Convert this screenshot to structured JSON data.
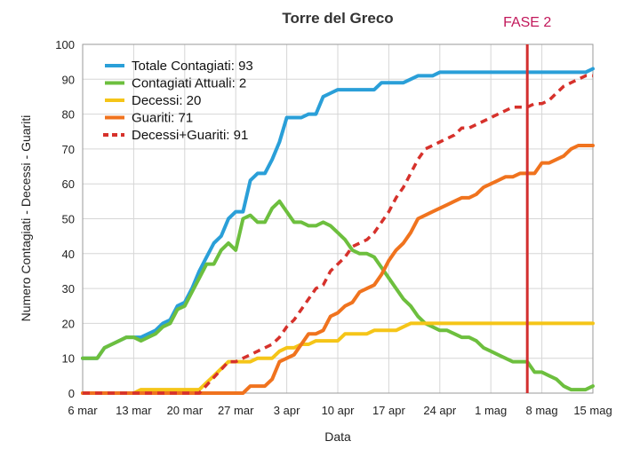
{
  "chart_data": {
    "type": "line",
    "title": "Torre del Greco",
    "xlabel": "Data",
    "ylabel": "Numero Contagiati - Decessi - Guariti",
    "x_ticks": [
      "6 mar",
      "13 mar",
      "20 mar",
      "27 mar",
      "3 apr",
      "10 apr",
      "17 apr",
      "24 apr",
      "1 mag",
      "8 mag",
      "15 mag"
    ],
    "xlim": [
      0,
      70
    ],
    "ylim": [
      0,
      100
    ],
    "y_ticks": [
      0,
      10,
      20,
      30,
      40,
      50,
      60,
      70,
      80,
      90,
      100
    ],
    "grid": true,
    "legend_position": "top-left",
    "annotation": {
      "text": "FASE 2",
      "x": 61,
      "color": "#c2185b",
      "line_color": "#d32f2f"
    },
    "series": [
      {
        "name": "Totale Contagiati: 93",
        "color": "#2a9fd8",
        "style": "solid",
        "points": [
          [
            0,
            10
          ],
          [
            2,
            10
          ],
          [
            3,
            13
          ],
          [
            5,
            15
          ],
          [
            6,
            16
          ],
          [
            8,
            16
          ],
          [
            9,
            17
          ],
          [
            10,
            18
          ],
          [
            11,
            20
          ],
          [
            12,
            21
          ],
          [
            13,
            25
          ],
          [
            14,
            26
          ],
          [
            15,
            30
          ],
          [
            16,
            35
          ],
          [
            17,
            39
          ],
          [
            18,
            43
          ],
          [
            19,
            45
          ],
          [
            20,
            50
          ],
          [
            21,
            52
          ],
          [
            22,
            52
          ],
          [
            23,
            61
          ],
          [
            24,
            63
          ],
          [
            25,
            63
          ],
          [
            26,
            67
          ],
          [
            27,
            72
          ],
          [
            28,
            79
          ],
          [
            29,
            79
          ],
          [
            30,
            79
          ],
          [
            31,
            80
          ],
          [
            32,
            80
          ],
          [
            33,
            85
          ],
          [
            34,
            86
          ],
          [
            35,
            87
          ],
          [
            36,
            87
          ],
          [
            37,
            87
          ],
          [
            38,
            87
          ],
          [
            39,
            87
          ],
          [
            40,
            87
          ],
          [
            41,
            89
          ],
          [
            42,
            89
          ],
          [
            43,
            89
          ],
          [
            44,
            89
          ],
          [
            45,
            90
          ],
          [
            46,
            91
          ],
          [
            47,
            91
          ],
          [
            48,
            91
          ],
          [
            49,
            92
          ],
          [
            50,
            92
          ],
          [
            51,
            92
          ],
          [
            52,
            92
          ],
          [
            53,
            92
          ],
          [
            54,
            92
          ],
          [
            55,
            92
          ],
          [
            56,
            92
          ],
          [
            57,
            92
          ],
          [
            58,
            92
          ],
          [
            59,
            92
          ],
          [
            60,
            92
          ],
          [
            61,
            92
          ],
          [
            62,
            92
          ],
          [
            63,
            92
          ],
          [
            64,
            92
          ],
          [
            65,
            92
          ],
          [
            66,
            92
          ],
          [
            67,
            92
          ],
          [
            68,
            92
          ],
          [
            69,
            92
          ],
          [
            70,
            93
          ]
        ]
      },
      {
        "name": "Contagiati Attuali: 2",
        "color": "#6dbf3e",
        "style": "solid",
        "points": [
          [
            0,
            10
          ],
          [
            2,
            10
          ],
          [
            3,
            13
          ],
          [
            5,
            15
          ],
          [
            6,
            16
          ],
          [
            7,
            16
          ],
          [
            8,
            15
          ],
          [
            9,
            16
          ],
          [
            10,
            17
          ],
          [
            11,
            19
          ],
          [
            12,
            20
          ],
          [
            13,
            24
          ],
          [
            14,
            25
          ],
          [
            15,
            29
          ],
          [
            16,
            33
          ],
          [
            17,
            37
          ],
          [
            18,
            37
          ],
          [
            19,
            41
          ],
          [
            20,
            43
          ],
          [
            21,
            41
          ],
          [
            22,
            50
          ],
          [
            23,
            51
          ],
          [
            24,
            49
          ],
          [
            25,
            49
          ],
          [
            26,
            53
          ],
          [
            27,
            55
          ],
          [
            28,
            52
          ],
          [
            29,
            49
          ],
          [
            30,
            49
          ],
          [
            31,
            48
          ],
          [
            32,
            48
          ],
          [
            33,
            49
          ],
          [
            34,
            48
          ],
          [
            35,
            46
          ],
          [
            36,
            44
          ],
          [
            37,
            41
          ],
          [
            38,
            40
          ],
          [
            39,
            40
          ],
          [
            40,
            39
          ],
          [
            41,
            36
          ],
          [
            42,
            33
          ],
          [
            43,
            30
          ],
          [
            44,
            27
          ],
          [
            45,
            25
          ],
          [
            46,
            22
          ],
          [
            47,
            20
          ],
          [
            48,
            19
          ],
          [
            49,
            18
          ],
          [
            50,
            18
          ],
          [
            51,
            17
          ],
          [
            52,
            16
          ],
          [
            53,
            16
          ],
          [
            54,
            15
          ],
          [
            55,
            13
          ],
          [
            56,
            12
          ],
          [
            57,
            11
          ],
          [
            58,
            10
          ],
          [
            59,
            9
          ],
          [
            60,
            9
          ],
          [
            61,
            9
          ],
          [
            62,
            6
          ],
          [
            63,
            6
          ],
          [
            64,
            5
          ],
          [
            65,
            4
          ],
          [
            66,
            2
          ],
          [
            67,
            1
          ],
          [
            68,
            1
          ],
          [
            69,
            1
          ],
          [
            70,
            2
          ]
        ]
      },
      {
        "name": "Decessi: 20",
        "color": "#f5c518",
        "style": "solid",
        "points": [
          [
            0,
            0
          ],
          [
            7,
            0
          ],
          [
            8,
            1
          ],
          [
            16,
            1
          ],
          [
            17,
            3
          ],
          [
            18,
            5
          ],
          [
            19,
            7
          ],
          [
            20,
            9
          ],
          [
            21,
            9
          ],
          [
            22,
            9
          ],
          [
            23,
            9
          ],
          [
            24,
            10
          ],
          [
            25,
            10
          ],
          [
            26,
            10
          ],
          [
            27,
            12
          ],
          [
            28,
            13
          ],
          [
            29,
            13
          ],
          [
            30,
            14
          ],
          [
            31,
            14
          ],
          [
            32,
            15
          ],
          [
            33,
            15
          ],
          [
            34,
            15
          ],
          [
            35,
            15
          ],
          [
            36,
            17
          ],
          [
            37,
            17
          ],
          [
            38,
            17
          ],
          [
            39,
            17
          ],
          [
            40,
            18
          ],
          [
            41,
            18
          ],
          [
            42,
            18
          ],
          [
            43,
            18
          ],
          [
            44,
            19
          ],
          [
            45,
            20
          ],
          [
            46,
            20
          ],
          [
            70,
            20
          ]
        ]
      },
      {
        "name": "Guariti: 71",
        "color": "#f0731e",
        "style": "solid",
        "points": [
          [
            0,
            0
          ],
          [
            22,
            0
          ],
          [
            23,
            2
          ],
          [
            24,
            2
          ],
          [
            25,
            2
          ],
          [
            26,
            4
          ],
          [
            27,
            9
          ],
          [
            28,
            10
          ],
          [
            29,
            11
          ],
          [
            30,
            14
          ],
          [
            31,
            17
          ],
          [
            32,
            17
          ],
          [
            33,
            18
          ],
          [
            34,
            22
          ],
          [
            35,
            23
          ],
          [
            36,
            25
          ],
          [
            37,
            26
          ],
          [
            38,
            29
          ],
          [
            39,
            30
          ],
          [
            40,
            31
          ],
          [
            41,
            34
          ],
          [
            42,
            38
          ],
          [
            43,
            41
          ],
          [
            44,
            43
          ],
          [
            45,
            46
          ],
          [
            46,
            50
          ],
          [
            47,
            51
          ],
          [
            48,
            52
          ],
          [
            49,
            53
          ],
          [
            50,
            54
          ],
          [
            51,
            55
          ],
          [
            52,
            56
          ],
          [
            53,
            56
          ],
          [
            54,
            57
          ],
          [
            55,
            59
          ],
          [
            56,
            60
          ],
          [
            57,
            61
          ],
          [
            58,
            62
          ],
          [
            59,
            62
          ],
          [
            60,
            63
          ],
          [
            61,
            63
          ],
          [
            62,
            63
          ],
          [
            63,
            66
          ],
          [
            64,
            66
          ],
          [
            65,
            67
          ],
          [
            66,
            68
          ],
          [
            67,
            70
          ],
          [
            68,
            71
          ],
          [
            69,
            71
          ],
          [
            70,
            71
          ]
        ]
      },
      {
        "name": "Decessi+Guariti: 91",
        "color": "#d6312b",
        "style": "dashed",
        "points": [
          [
            0,
            0
          ],
          [
            16,
            0
          ],
          [
            20,
            9
          ],
          [
            21,
            9
          ],
          [
            22,
            10
          ],
          [
            23,
            11
          ],
          [
            24,
            12
          ],
          [
            25,
            13
          ],
          [
            26,
            14
          ],
          [
            27,
            16
          ],
          [
            28,
            19
          ],
          [
            29,
            21
          ],
          [
            30,
            24
          ],
          [
            31,
            27
          ],
          [
            32,
            30
          ],
          [
            33,
            31
          ],
          [
            34,
            35
          ],
          [
            35,
            37
          ],
          [
            36,
            39
          ],
          [
            37,
            42
          ],
          [
            38,
            43
          ],
          [
            39,
            44
          ],
          [
            40,
            46
          ],
          [
            41,
            49
          ],
          [
            42,
            52
          ],
          [
            43,
            56
          ],
          [
            44,
            59
          ],
          [
            45,
            63
          ],
          [
            46,
            67
          ],
          [
            47,
            70
          ],
          [
            48,
            71
          ],
          [
            49,
            72
          ],
          [
            50,
            73
          ],
          [
            51,
            74
          ],
          [
            52,
            76
          ],
          [
            53,
            76
          ],
          [
            54,
            77
          ],
          [
            55,
            78
          ],
          [
            56,
            79
          ],
          [
            57,
            80
          ],
          [
            58,
            81
          ],
          [
            59,
            82
          ],
          [
            60,
            82
          ],
          [
            61,
            82
          ],
          [
            62,
            83
          ],
          [
            63,
            83
          ],
          [
            64,
            84
          ],
          [
            65,
            86
          ],
          [
            66,
            88
          ],
          [
            67,
            89
          ],
          [
            68,
            90
          ],
          [
            69,
            91
          ],
          [
            70,
            91
          ]
        ]
      }
    ]
  }
}
